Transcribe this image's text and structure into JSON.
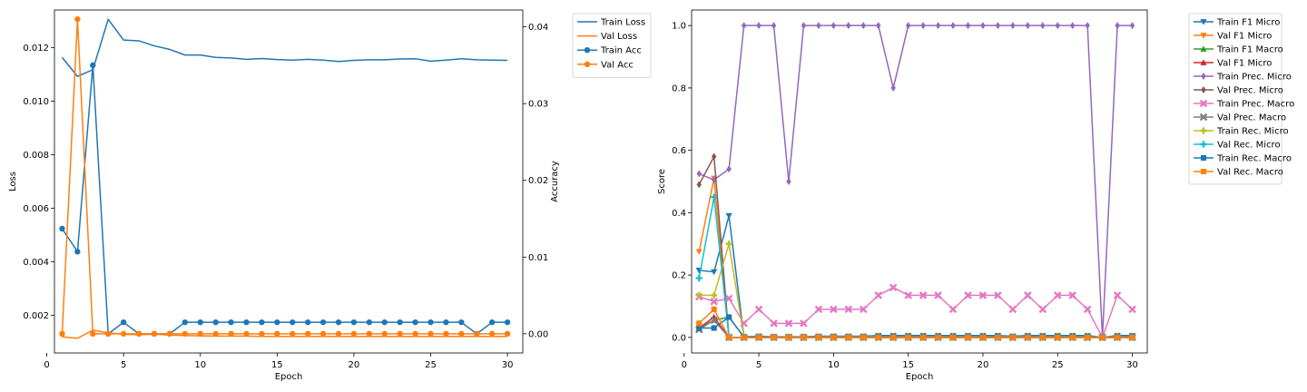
{
  "chart_data": [
    {
      "type": "line",
      "xlabel": "Epoch",
      "ylabel": "Loss",
      "y2label": "Accuracy",
      "x": [
        1,
        2,
        3,
        4,
        5,
        6,
        7,
        8,
        9,
        10,
        11,
        12,
        13,
        14,
        15,
        16,
        17,
        18,
        19,
        20,
        21,
        22,
        23,
        24,
        25,
        26,
        27,
        28,
        29,
        30
      ],
      "xlim": [
        0.5,
        31
      ],
      "ylim": [
        0.0006,
        0.0134
      ],
      "y2lim": [
        -0.0025,
        0.0422
      ],
      "xticks": [
        0,
        5,
        10,
        15,
        20,
        25,
        30
      ],
      "yticks": [
        0.002,
        0.004,
        0.006,
        0.008,
        0.01,
        0.012
      ],
      "ytick_labels": [
        "0.002",
        "0.004",
        "0.006",
        "0.008",
        "0.010",
        "0.012"
      ],
      "y2ticks": [
        0.0,
        0.01,
        0.02,
        0.03,
        0.04
      ],
      "y2tick_labels": [
        "0.00",
        "0.01",
        "0.02",
        "0.03",
        "0.04"
      ],
      "grid": false,
      "legend_position": "outside-top-right",
      "series": [
        {
          "name": "Train Loss",
          "axis": "left",
          "color": "#1f77b4",
          "marker": "none",
          "values": [
            0.01163,
            0.01092,
            0.01117,
            0.01305,
            0.01228,
            0.01225,
            0.01206,
            0.01193,
            0.01172,
            0.01172,
            0.01163,
            0.01161,
            0.01156,
            0.01159,
            0.01155,
            0.01153,
            0.01156,
            0.01153,
            0.01148,
            0.01152,
            0.01154,
            0.01154,
            0.01157,
            0.01158,
            0.01149,
            0.01153,
            0.01158,
            0.01154,
            0.01153,
            0.01152
          ]
        },
        {
          "name": "Val Loss",
          "axis": "left",
          "color": "#ff7f0e",
          "marker": "none",
          "values": [
            0.0012,
            0.00115,
            0.00145,
            0.00135,
            0.0013,
            0.00128,
            0.0013,
            0.00127,
            0.00125,
            0.00124,
            0.00123,
            0.00123,
            0.00123,
            0.00122,
            0.00122,
            0.00122,
            0.00122,
            0.00122,
            0.00122,
            0.00122,
            0.00122,
            0.00122,
            0.00122,
            0.00122,
            0.00122,
            0.00122,
            0.00122,
            0.00122,
            0.00122,
            0.00122
          ]
        },
        {
          "name": "Train Acc",
          "axis": "right",
          "color": "#1f77b4",
          "marker": "circle",
          "values": [
            0.0137,
            0.0107,
            0.035,
            0.0,
            0.0015,
            0.0,
            0.0,
            0.0,
            0.0015,
            0.0015,
            0.0015,
            0.0015,
            0.0015,
            0.0015,
            0.0015,
            0.0015,
            0.0015,
            0.0015,
            0.0015,
            0.0015,
            0.0015,
            0.0015,
            0.0015,
            0.0015,
            0.0015,
            0.0015,
            0.0015,
            0.0,
            0.0015,
            0.0015
          ]
        },
        {
          "name": "Val Acc",
          "axis": "right",
          "color": "#ff7f0e",
          "marker": "circle",
          "values": [
            0.0,
            0.041,
            0.0,
            0.0,
            0.0,
            0.0,
            0.0,
            0.0,
            0.0,
            0.0,
            0.0,
            0.0,
            0.0,
            0.0,
            0.0,
            0.0,
            0.0,
            0.0,
            0.0,
            0.0,
            0.0,
            0.0,
            0.0,
            0.0,
            0.0,
            0.0,
            0.0,
            0.0,
            0.0,
            0.0
          ]
        }
      ]
    },
    {
      "type": "line",
      "xlabel": "Epoch",
      "ylabel": "Score",
      "x": [
        1,
        2,
        3,
        4,
        5,
        6,
        7,
        8,
        9,
        10,
        11,
        12,
        13,
        14,
        15,
        16,
        17,
        18,
        19,
        20,
        21,
        22,
        23,
        24,
        25,
        26,
        27,
        28,
        29,
        30
      ],
      "xlim": [
        0.5,
        31
      ],
      "ylim": [
        -0.05,
        1.05
      ],
      "xticks": [
        0,
        5,
        10,
        15,
        20,
        25,
        30
      ],
      "yticks": [
        0.0,
        0.2,
        0.4,
        0.6,
        0.8,
        1.0
      ],
      "ytick_labels": [
        "0.0",
        "0.2",
        "0.4",
        "0.6",
        "0.8",
        "1.0"
      ],
      "grid": false,
      "legend_position": "outside-top-right",
      "series": [
        {
          "name": "Train F1 Micro",
          "color": "#1f77b4",
          "marker": "triangle-down",
          "values": [
            0.215,
            0.21,
            0.39,
            0.002,
            0.004,
            0.002,
            0.002,
            0.002,
            0.004,
            0.004,
            0.004,
            0.004,
            0.006,
            0.006,
            0.006,
            0.006,
            0.006,
            0.006,
            0.006,
            0.006,
            0.006,
            0.004,
            0.006,
            0.006,
            0.006,
            0.006,
            0.006,
            0.0,
            0.006,
            0.006
          ]
        },
        {
          "name": "Val F1 Micro",
          "color": "#ff7f0e",
          "marker": "triangle-down",
          "values": [
            0.275,
            0.51,
            0.0,
            0.0,
            0.0,
            0.0,
            0.0,
            0.0,
            0.0,
            0.0,
            0.0,
            0.0,
            0.0,
            0.0,
            0.0,
            0.0,
            0.0,
            0.0,
            0.0,
            0.0,
            0.0,
            0.0,
            0.0,
            0.0,
            0.0,
            0.0,
            0.0,
            0.0,
            0.0,
            0.0
          ]
        },
        {
          "name": "Train F1 Macro",
          "color": "#2ca02c",
          "marker": "triangle-up",
          "values": [
            0.03,
            0.055,
            0.065,
            0.001,
            0.002,
            0.001,
            0.001,
            0.001,
            0.002,
            0.002,
            0.002,
            0.002,
            0.003,
            0.003,
            0.003,
            0.003,
            0.003,
            0.003,
            0.003,
            0.003,
            0.003,
            0.002,
            0.003,
            0.003,
            0.003,
            0.003,
            0.003,
            0.0,
            0.003,
            0.003
          ]
        },
        {
          "name": "Val F1 Micro",
          "color": "#d62728",
          "marker": "triangle-up",
          "values": [
            0.03,
            0.065,
            0.0,
            0.0,
            0.0,
            0.0,
            0.0,
            0.0,
            0.0,
            0.0,
            0.0,
            0.0,
            0.0,
            0.0,
            0.0,
            0.0,
            0.0,
            0.0,
            0.0,
            0.0,
            0.0,
            0.0,
            0.0,
            0.0,
            0.0,
            0.0,
            0.0,
            0.0,
            0.0,
            0.0
          ]
        },
        {
          "name": "Train Prec. Micro",
          "color": "#9467bd",
          "marker": "diamond",
          "values": [
            0.525,
            0.505,
            0.54,
            1.0,
            1.0,
            1.0,
            0.5,
            1.0,
            1.0,
            1.0,
            1.0,
            1.0,
            1.0,
            0.8,
            1.0,
            1.0,
            1.0,
            1.0,
            1.0,
            1.0,
            1.0,
            1.0,
            1.0,
            1.0,
            1.0,
            1.0,
            1.0,
            0.0,
            1.0,
            1.0
          ]
        },
        {
          "name": "Val Prec. Micro",
          "color": "#8c564b",
          "marker": "diamond",
          "values": [
            0.49,
            0.58,
            0.0,
            0.0,
            0.0,
            0.0,
            0.0,
            0.0,
            0.0,
            0.0,
            0.0,
            0.0,
            0.0,
            0.0,
            0.0,
            0.0,
            0.0,
            0.0,
            0.0,
            0.0,
            0.0,
            0.0,
            0.0,
            0.0,
            0.0,
            0.0,
            0.0,
            0.0,
            0.0,
            0.0
          ]
        },
        {
          "name": "Train Prec. Macro",
          "color": "#e377c2",
          "marker": "x",
          "values": [
            0.13,
            0.115,
            0.125,
            0.045,
            0.09,
            0.045,
            0.045,
            0.045,
            0.09,
            0.09,
            0.09,
            0.09,
            0.135,
            0.16,
            0.135,
            0.135,
            0.135,
            0.09,
            0.135,
            0.135,
            0.135,
            0.09,
            0.135,
            0.09,
            0.135,
            0.135,
            0.09,
            0.0,
            0.135,
            0.09
          ]
        },
        {
          "name": "Val Prec. Macro",
          "color": "#7f7f7f",
          "marker": "x",
          "values": [
            0.025,
            0.055,
            0.0,
            0.0,
            0.0,
            0.0,
            0.0,
            0.0,
            0.0,
            0.0,
            0.0,
            0.0,
            0.0,
            0.0,
            0.0,
            0.0,
            0.0,
            0.0,
            0.0,
            0.0,
            0.0,
            0.0,
            0.0,
            0.0,
            0.0,
            0.0,
            0.0,
            0.0,
            0.0,
            0.0
          ]
        },
        {
          "name": "Train Rec. Micro",
          "color": "#bcbd22",
          "marker": "plus",
          "values": [
            0.135,
            0.135,
            0.3,
            0.001,
            0.002,
            0.001,
            0.001,
            0.001,
            0.002,
            0.002,
            0.002,
            0.002,
            0.003,
            0.003,
            0.003,
            0.003,
            0.003,
            0.003,
            0.003,
            0.003,
            0.003,
            0.002,
            0.003,
            0.003,
            0.003,
            0.003,
            0.003,
            0.0,
            0.003,
            0.003
          ]
        },
        {
          "name": "Val Rec. Micro",
          "color": "#17becf",
          "marker": "plus",
          "values": [
            0.19,
            0.45,
            0.0,
            0.0,
            0.0,
            0.0,
            0.0,
            0.0,
            0.0,
            0.0,
            0.0,
            0.0,
            0.0,
            0.0,
            0.0,
            0.0,
            0.0,
            0.0,
            0.0,
            0.0,
            0.0,
            0.0,
            0.0,
            0.0,
            0.0,
            0.0,
            0.0,
            0.0,
            0.0,
            0.0
          ]
        },
        {
          "name": "Train Rec. Macro",
          "color": "#1f77b4",
          "marker": "square",
          "values": [
            0.03,
            0.03,
            0.065,
            0.001,
            0.001,
            0.001,
            0.001,
            0.001,
            0.001,
            0.001,
            0.001,
            0.001,
            0.002,
            0.002,
            0.002,
            0.002,
            0.002,
            0.002,
            0.002,
            0.002,
            0.002,
            0.001,
            0.002,
            0.002,
            0.002,
            0.002,
            0.002,
            0.0,
            0.002,
            0.002
          ]
        },
        {
          "name": "Val Rec. Macro",
          "color": "#ff7f0e",
          "marker": "square",
          "values": [
            0.045,
            0.09,
            0.0,
            0.0,
            0.0,
            0.0,
            0.0,
            0.0,
            0.0,
            0.0,
            0.0,
            0.0,
            0.0,
            0.0,
            0.0,
            0.0,
            0.0,
            0.0,
            0.0,
            0.0,
            0.0,
            0.0,
            0.0,
            0.0,
            0.0,
            0.0,
            0.0,
            0.0,
            0.0,
            0.0
          ]
        }
      ]
    }
  ]
}
